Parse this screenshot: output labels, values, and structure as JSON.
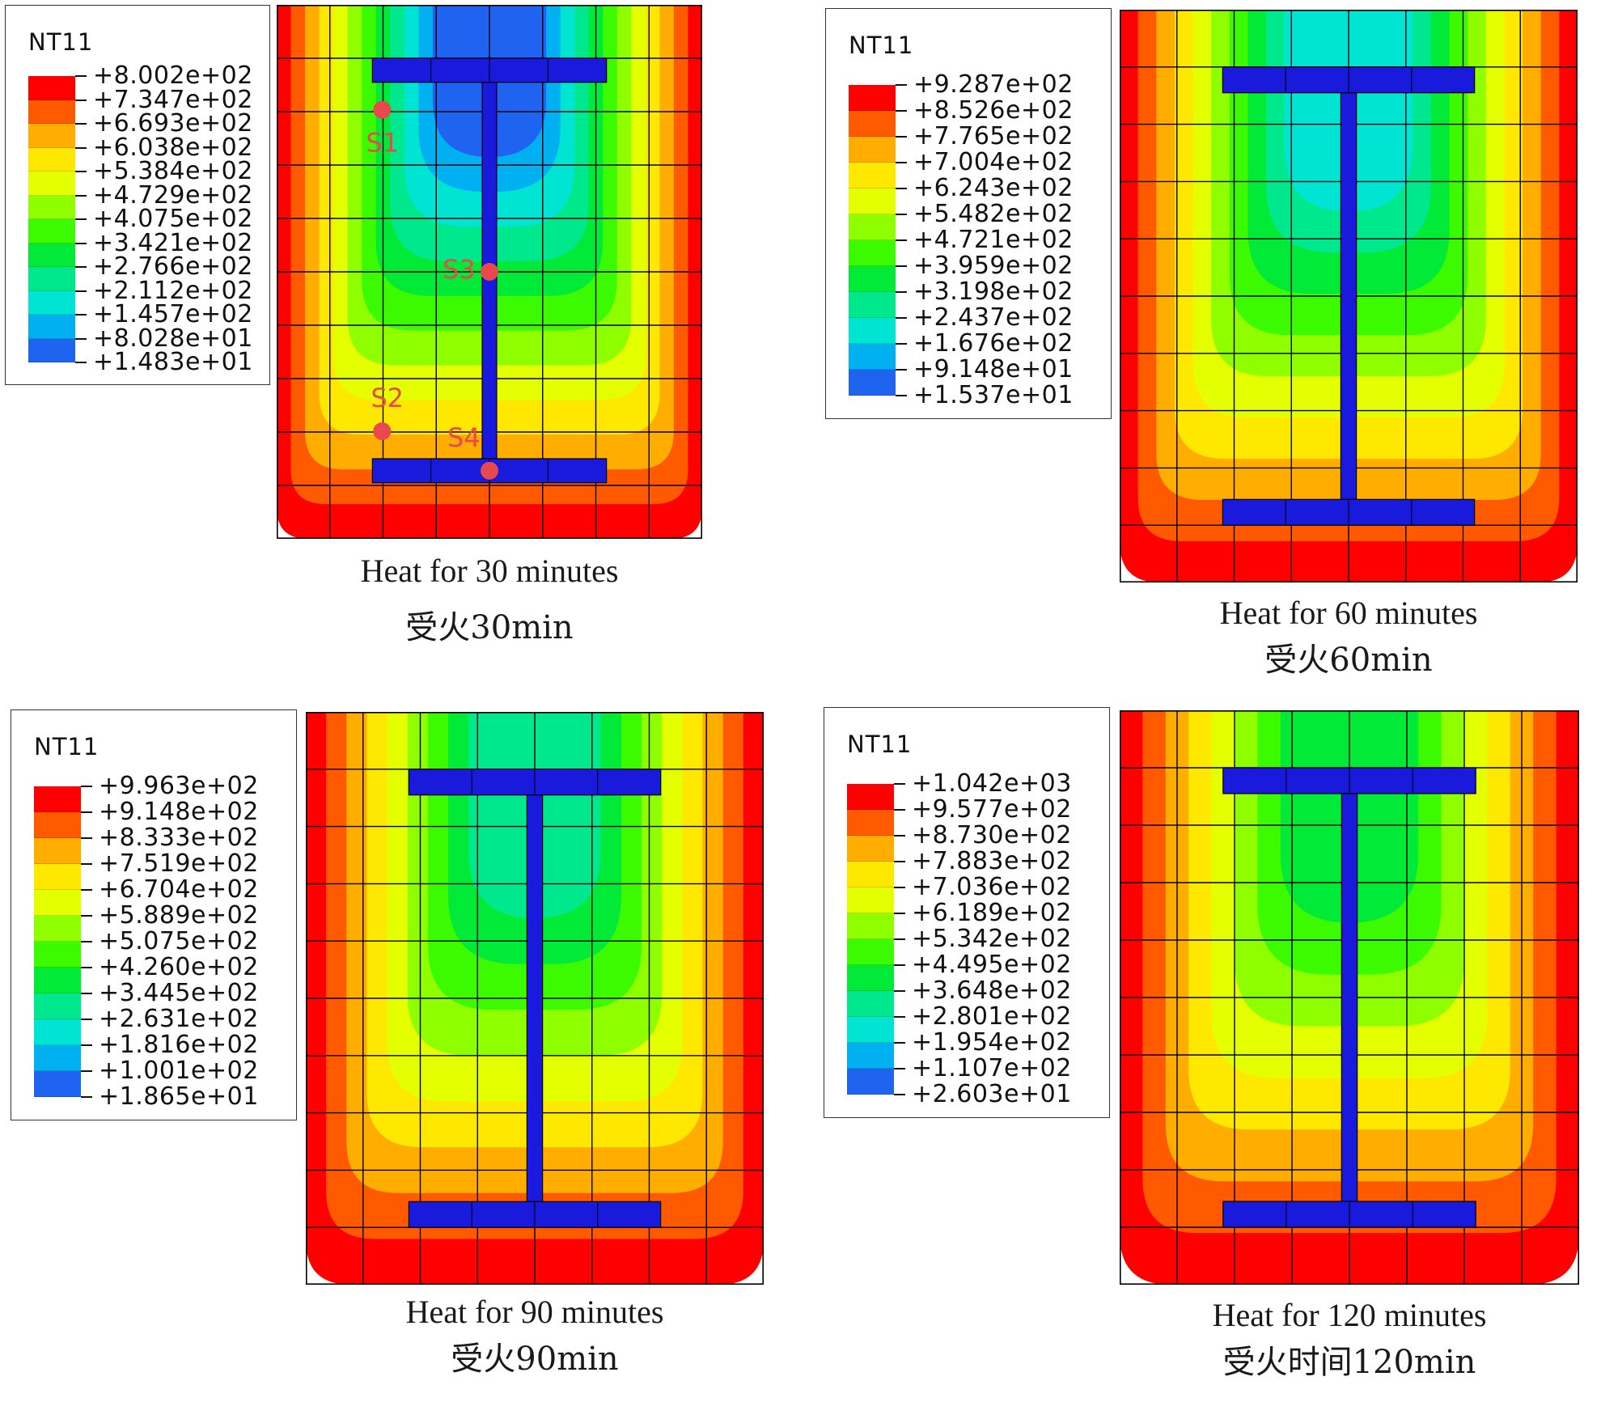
{
  "colors": {
    "flange": "#1a1adc",
    "probe": "#e8484e",
    "grid": "#000000"
  },
  "panels": [
    {
      "id": "p30",
      "legend": {
        "variable": "NT11",
        "values": [
          "+8.002e+02",
          "+7.347e+02",
          "+6.693e+02",
          "+6.038e+02",
          "+5.384e+02",
          "+4.729e+02",
          "+4.075e+02",
          "+3.421e+02",
          "+2.766e+02",
          "+2.112e+02",
          "+1.457e+02",
          "+8.028e+01",
          "+1.483e+01"
        ]
      },
      "caption": {
        "en": "Heat for 30 minutes",
        "cn": "受火30min"
      },
      "probes": [
        {
          "label": "S1"
        },
        {
          "label": "S3"
        },
        {
          "label": "S2"
        },
        {
          "label": "S4"
        }
      ],
      "heat_level": 0
    },
    {
      "id": "p60",
      "legend": {
        "variable": "NT11",
        "values": [
          "+9.287e+02",
          "+8.526e+02",
          "+7.765e+02",
          "+7.004e+02",
          "+6.243e+02",
          "+5.482e+02",
          "+4.721e+02",
          "+3.959e+02",
          "+3.198e+02",
          "+2.437e+02",
          "+1.676e+02",
          "+9.148e+01",
          "+1.537e+01"
        ]
      },
      "caption": {
        "en": "Heat for 60 minutes",
        "cn": "受火60min"
      },
      "probes": [],
      "heat_level": 1
    },
    {
      "id": "p90",
      "legend": {
        "variable": "NT11",
        "values": [
          "+9.963e+02",
          "+9.148e+02",
          "+8.333e+02",
          "+7.519e+02",
          "+6.704e+02",
          "+5.889e+02",
          "+5.075e+02",
          "+4.260e+02",
          "+3.445e+02",
          "+2.631e+02",
          "+1.816e+02",
          "+1.001e+02",
          "+1.865e+01"
        ]
      },
      "caption": {
        "en": "Heat for 90 minutes",
        "cn": "受火90min"
      },
      "probes": [],
      "heat_level": 2
    },
    {
      "id": "p120",
      "legend": {
        "variable": "NT11",
        "values": [
          "+1.042e+03",
          "+9.577e+02",
          "+8.730e+02",
          "+7.883e+02",
          "+7.036e+02",
          "+6.189e+02",
          "+5.342e+02",
          "+4.495e+02",
          "+3.648e+02",
          "+2.801e+02",
          "+1.954e+02",
          "+1.107e+02",
          "+2.603e+01"
        ]
      },
      "caption": {
        "en": "Heat for 120 minutes",
        "cn": "受火时间120min"
      },
      "probes": [],
      "heat_level": 3
    }
  ],
  "colormap": [
    "#ff0000",
    "#ff5a00",
    "#ffae00",
    "#ffe800",
    "#e4ff00",
    "#8fff00",
    "#3cfa00",
    "#00ea37",
    "#00e88e",
    "#00e5d3",
    "#00b0f0",
    "#1e64f0",
    "#0000ff"
  ]
}
